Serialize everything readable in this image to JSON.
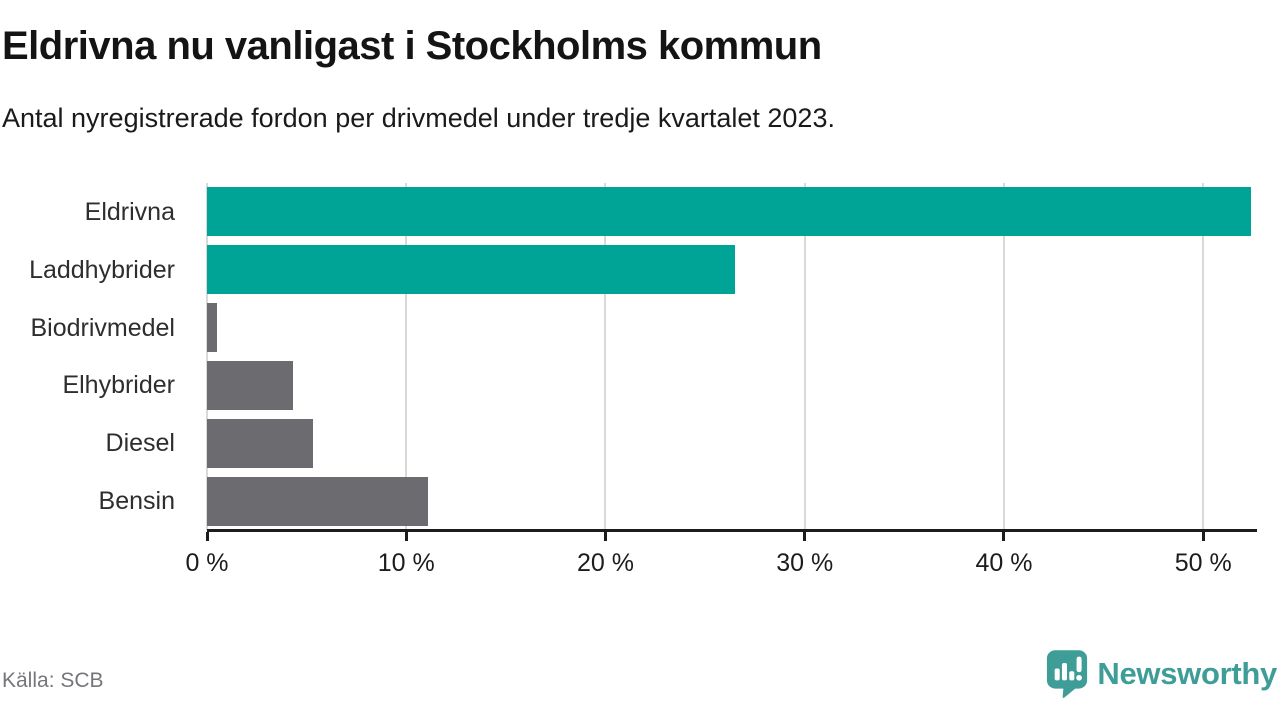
{
  "header": {
    "title": "Eldrivna nu vanligast i Stockholms kommun",
    "subtitle": "Antal nyregistrerade fordon per drivmedel under tredje kvartalet 2023."
  },
  "chart_data": {
    "type": "bar",
    "orientation": "horizontal",
    "title": "Eldrivna nu vanligast i Stockholms kommun",
    "subtitle": "Antal nyregistrerade fordon per drivmedel under tredje kvartalet 2023.",
    "categories": [
      "Eldrivna",
      "Laddhybrider",
      "Biodrivmedel",
      "Elhybrider",
      "Diesel",
      "Bensin"
    ],
    "values": [
      52.4,
      26.5,
      0.5,
      4.3,
      5.3,
      11.1
    ],
    "unit": "%",
    "bar_colors": [
      "#00a496",
      "#00a496",
      "#6b6b70",
      "#6b6b70",
      "#6b6b70",
      "#6b6b70"
    ],
    "xlabel": "",
    "ylabel": "",
    "xlim": [
      0,
      52.6
    ],
    "x_ticks": [
      {
        "value": 0,
        "label": "0 %"
      },
      {
        "value": 10,
        "label": "10 %"
      },
      {
        "value": 20,
        "label": "20 %"
      },
      {
        "value": 30,
        "label": "30 %"
      },
      {
        "value": 40,
        "label": "40 %"
      },
      {
        "value": 50,
        "label": "50 %"
      }
    ],
    "grid": true,
    "legend": "none"
  },
  "footer": {
    "source": "Källa: SCB",
    "brand": "Newsworthy"
  },
  "colors": {
    "accent_teal": "#00a496",
    "neutral_gray": "#6b6b70",
    "grid": "#d9d9d9",
    "axis": "#1c1c1c",
    "brand_teal": "#3f9d98",
    "muted_text": "#76767a"
  }
}
